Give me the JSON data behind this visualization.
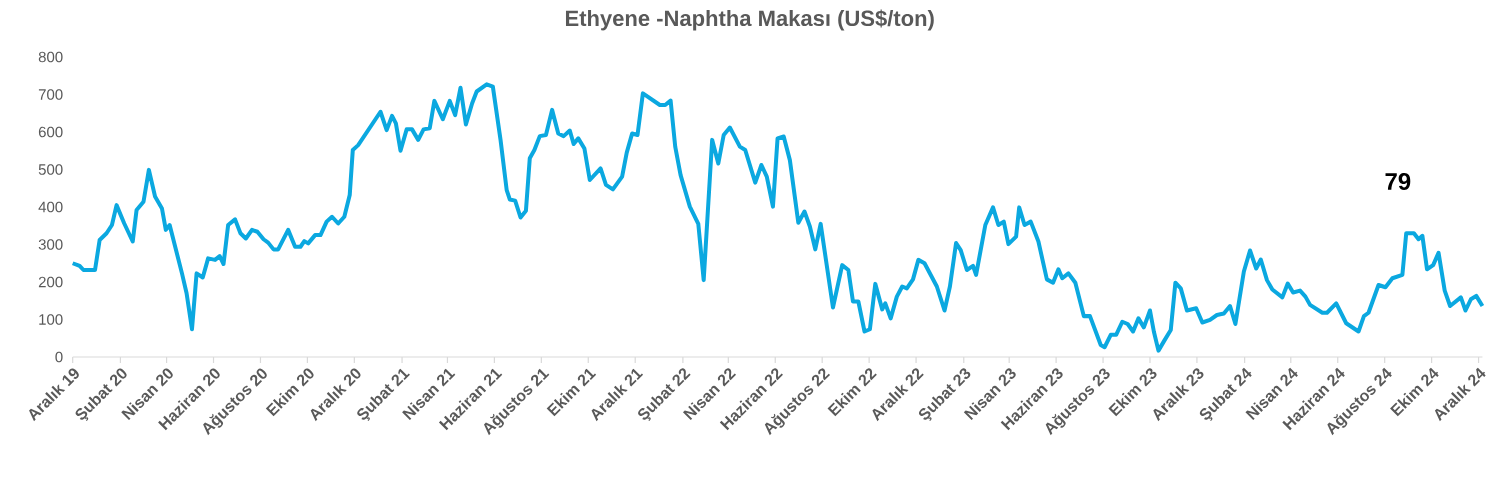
{
  "chart_data": {
    "type": "line",
    "title": "Ethyene -Naphtha Makası (US$/ton)",
    "color": "#0ba8e0",
    "marker": "none",
    "xlim": [
      "2019-12-01",
      "2024-12-06"
    ],
    "ylim": [
      0,
      800
    ],
    "yticks": [
      0,
      100,
      200,
      300,
      400,
      500,
      600,
      700,
      800
    ],
    "xticks": [
      {
        "value": "2019-12",
        "label": "Aralık 19"
      },
      {
        "value": "2020-02",
        "label": "Şubat 20"
      },
      {
        "value": "2020-04",
        "label": "Nisan 20"
      },
      {
        "value": "2020-06",
        "label": "Haziran 20"
      },
      {
        "value": "2020-08",
        "label": "Ağustos 20"
      },
      {
        "value": "2020-10",
        "label": "Ekim 20"
      },
      {
        "value": "2020-12",
        "label": "Aralık 20"
      },
      {
        "value": "2021-02",
        "label": "Şubat 21"
      },
      {
        "value": "2021-04",
        "label": "Nisan 21"
      },
      {
        "value": "2021-06",
        "label": "Haziran 21"
      },
      {
        "value": "2021-08",
        "label": "Ağustos 21"
      },
      {
        "value": "2021-10",
        "label": "Ekim 21"
      },
      {
        "value": "2021-12",
        "label": "Aralık 21"
      },
      {
        "value": "2022-02",
        "label": "Şubat 22"
      },
      {
        "value": "2022-04",
        "label": "Nisan 22"
      },
      {
        "value": "2022-06",
        "label": "Haziran 22"
      },
      {
        "value": "2022-08",
        "label": "Ağustos 22"
      },
      {
        "value": "2022-10",
        "label": "Ekim 22"
      },
      {
        "value": "2022-12",
        "label": "Aralık 22"
      },
      {
        "value": "2023-02",
        "label": "Şubat 23"
      },
      {
        "value": "2023-04",
        "label": "Nisan 23"
      },
      {
        "value": "2023-06",
        "label": "Haziran 23"
      },
      {
        "value": "2023-08",
        "label": "Ağustos 23"
      },
      {
        "value": "2023-10",
        "label": "Ekim 23"
      },
      {
        "value": "2023-12",
        "label": "Aralık 23"
      },
      {
        "value": "2024-02",
        "label": "Şubat 24"
      },
      {
        "value": "2024-04",
        "label": "Nisan 24"
      },
      {
        "value": "2024-06",
        "label": "Haziran 24"
      },
      {
        "value": "2024-08",
        "label": "Ağustos 24"
      },
      {
        "value": "2024-10",
        "label": "Ekim 24"
      },
      {
        "value": "2024-12",
        "label": "Aralık 24"
      }
    ],
    "annotations": [
      "79"
    ],
    "x": [
      "2019-12-01",
      "2019-12-10",
      "2019-12-15",
      "2019-12-30",
      "2020-01-05",
      "2020-01-14",
      "2020-01-21",
      "2020-01-27",
      "2020-02-06",
      "2020-02-17",
      "2020-02-22",
      "2020-03-02",
      "2020-03-09",
      "2020-03-17",
      "2020-03-26",
      "2020-03-31",
      "2020-04-05",
      "2020-04-21",
      "2020-04-27",
      "2020-05-04",
      "2020-05-10",
      "2020-05-18",
      "2020-05-25",
      "2020-06-03",
      "2020-06-09",
      "2020-06-14",
      "2020-06-20",
      "2020-06-29",
      "2020-07-06",
      "2020-07-13",
      "2020-07-21",
      "2020-07-28",
      "2020-08-05",
      "2020-08-11",
      "2020-08-18",
      "2020-08-24",
      "2020-09-06",
      "2020-09-15",
      "2020-09-22",
      "2020-09-27",
      "2020-10-02",
      "2020-10-11",
      "2020-10-18",
      "2020-10-26",
      "2020-11-02",
      "2020-11-10",
      "2020-11-18",
      "2020-11-25",
      "2020-11-29",
      "2020-12-06",
      "2021-01-04",
      "2021-01-12",
      "2021-01-19",
      "2021-01-24",
      "2021-01-30",
      "2021-02-07",
      "2021-02-14",
      "2021-02-22",
      "2021-03-01",
      "2021-03-09",
      "2021-03-15",
      "2021-03-26",
      "2021-04-04",
      "2021-04-11",
      "2021-04-18",
      "2021-04-25",
      "2021-05-03",
      "2021-05-09",
      "2021-05-22",
      "2021-05-30",
      "2021-06-09",
      "2021-06-17",
      "2021-06-21",
      "2021-06-28",
      "2021-07-05",
      "2021-07-12",
      "2021-07-17",
      "2021-07-23",
      "2021-07-30",
      "2021-08-07",
      "2021-08-15",
      "2021-08-23",
      "2021-08-30",
      "2021-09-07",
      "2021-09-12",
      "2021-09-18",
      "2021-09-26",
      "2021-10-03",
      "2021-10-17",
      "2021-10-24",
      "2021-11-02",
      "2021-11-14",
      "2021-11-20",
      "2021-11-27",
      "2021-12-04",
      "2021-12-11",
      "2022-01-02",
      "2022-01-09",
      "2022-01-16",
      "2022-01-22",
      "2022-01-29",
      "2022-02-10",
      "2022-02-21",
      "2022-02-28",
      "2022-03-11",
      "2022-03-19",
      "2022-03-26",
      "2022-04-03",
      "2022-04-16",
      "2022-04-23",
      "2022-05-06",
      "2022-05-14",
      "2022-05-21",
      "2022-05-29",
      "2022-06-04",
      "2022-06-12",
      "2022-06-20",
      "2022-07-01",
      "2022-07-09",
      "2022-07-16",
      "2022-07-23",
      "2022-07-30",
      "2022-08-15",
      "2022-08-27",
      "2022-09-04",
      "2022-09-10",
      "2022-09-17",
      "2022-09-25",
      "2022-10-02",
      "2022-10-09",
      "2022-10-18",
      "2022-10-22",
      "2022-10-29",
      "2022-11-06",
      "2022-11-13",
      "2022-11-19",
      "2022-11-27",
      "2022-12-04",
      "2022-12-12",
      "2022-12-28",
      "2023-01-07",
      "2023-01-14",
      "2023-01-22",
      "2023-01-28",
      "2023-02-05",
      "2023-02-13",
      "2023-02-17",
      "2023-03-01",
      "2023-03-11",
      "2023-03-18",
      "2023-03-25",
      "2023-03-31",
      "2023-04-10",
      "2023-04-14",
      "2023-04-21",
      "2023-04-29",
      "2023-05-09",
      "2023-05-20",
      "2023-05-28",
      "2023-06-04",
      "2023-06-09",
      "2023-06-17",
      "2023-06-26",
      "2023-07-07",
      "2023-07-15",
      "2023-07-29",
      "2023-08-03",
      "2023-08-11",
      "2023-08-18",
      "2023-08-26",
      "2023-09-02",
      "2023-09-09",
      "2023-09-16",
      "2023-09-23",
      "2023-10-01",
      "2023-10-06",
      "2023-10-12",
      "2023-10-20",
      "2023-10-28",
      "2023-11-03",
      "2023-11-10",
      "2023-11-18",
      "2023-11-30",
      "2023-12-08",
      "2023-12-18",
      "2023-12-27",
      "2024-01-05",
      "2024-01-13",
      "2024-01-20",
      "2024-01-31",
      "2024-02-08",
      "2024-02-16",
      "2024-02-22",
      "2024-03-01",
      "2024-03-08",
      "2024-03-21",
      "2024-03-28",
      "2024-04-04",
      "2024-04-13",
      "2024-04-20",
      "2024-04-26",
      "2024-05-12",
      "2024-05-18",
      "2024-05-30",
      "2024-06-12",
      "2024-06-28",
      "2024-07-05",
      "2024-07-11",
      "2024-07-24",
      "2024-08-02",
      "2024-08-11",
      "2024-08-24",
      "2024-08-29",
      "2024-09-08",
      "2024-09-14",
      "2024-09-19",
      "2024-09-25",
      "2024-10-03",
      "2024-10-10",
      "2024-10-18",
      "2024-10-25",
      "2024-11-08",
      "2024-11-14",
      "2024-11-21",
      "2024-11-28",
      "2024-12-06"
    ],
    "values": [
      250,
      243,
      232,
      232,
      312,
      330,
      352,
      405,
      356,
      308,
      392,
      414,
      499,
      428,
      396,
      339,
      352,
      223,
      170,
      74,
      223,
      212,
      263,
      259,
      269,
      248,
      352,
      367,
      330,
      316,
      339,
      334,
      314,
      305,
      287,
      287,
      339,
      294,
      294,
      309,
      303,
      325,
      325,
      361,
      374,
      356,
      374,
      432,
      552,
      565,
      654,
      605,
      643,
      623,
      550,
      607,
      607,
      579,
      607,
      610,
      683,
      634,
      683,
      645,
      718,
      620,
      676,
      708,
      727,
      721,
      579,
      445,
      420,
      417,
      372,
      390,
      530,
      552,
      589,
      592,
      659,
      596,
      589,
      604,
      568,
      583,
      556,
      472,
      503,
      459,
      447,
      481,
      545,
      596,
      592,
      703,
      672,
      672,
      684,
      561,
      485,
      401,
      355,
      205,
      579,
      516,
      592,
      612,
      561,
      552,
      465,
      512,
      481,
      401,
      583,
      588,
      525,
      358,
      388,
      348,
      287,
      355,
      132,
      245,
      232,
      148,
      148,
      68,
      74,
      195,
      127,
      143,
      103,
      161,
      188,
      183,
      207,
      259,
      250,
      188,
      124,
      188,
      304,
      285,
      232,
      243,
      219,
      352,
      399,
      352,
      361,
      301,
      321,
      399,
      352,
      361,
      308,
      207,
      198,
      234,
      210,
      223,
      198,
      109,
      109,
      32,
      26,
      59,
      59,
      94,
      88,
      68,
      103,
      79,
      124,
      68,
      17,
      45,
      72,
      198,
      183,
      124,
      130,
      92,
      99,
      112,
      116,
      136,
      88,
      228,
      284,
      236,
      260,
      205,
      180,
      159,
      196,
      172,
      177,
      161,
      139,
      118,
      118,
      143,
      90,
      68,
      109,
      118,
      192,
      186,
      210,
      219,
      330,
      330,
      314,
      323,
      234,
      245,
      278,
      177,
      136,
      159,
      124,
      154,
      163,
      136
    ]
  }
}
